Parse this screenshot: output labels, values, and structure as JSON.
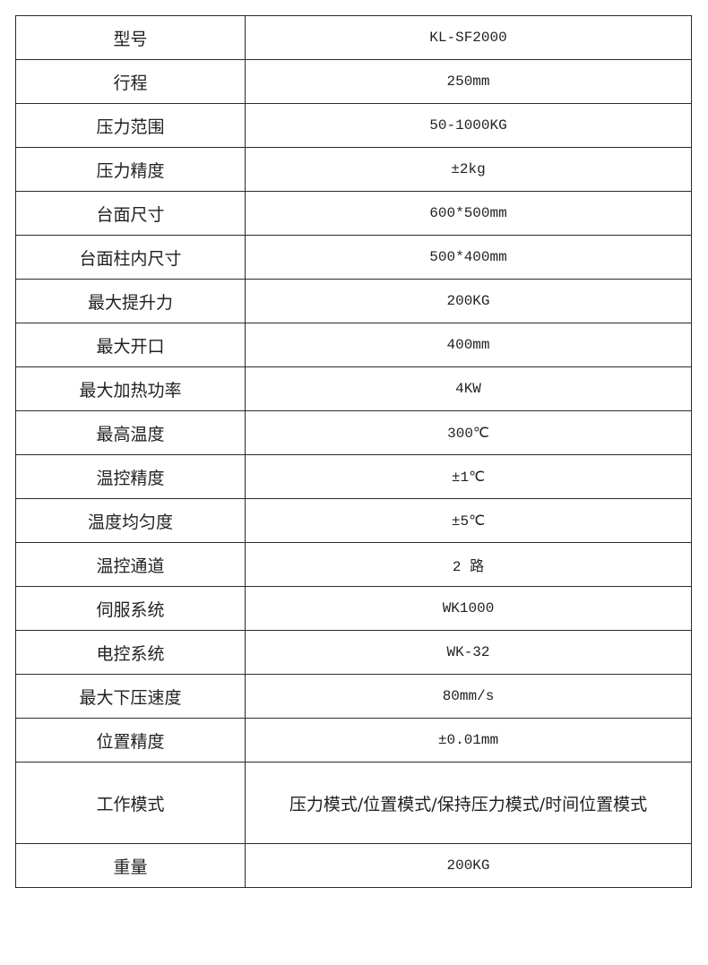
{
  "rows": [
    {
      "label": "型号",
      "value": "KL-SF2000"
    },
    {
      "label": "行程",
      "value": "250mm"
    },
    {
      "label": "压力范围",
      "value": "50-1000KG"
    },
    {
      "label": "压力精度",
      "value": "±2kg"
    },
    {
      "label": "台面尺寸",
      "value": "600*500mm"
    },
    {
      "label": "台面柱内尺寸",
      "value": "500*400mm"
    },
    {
      "label": "最大提升力",
      "value": "200KG"
    },
    {
      "label": "最大开口",
      "value": "400mm"
    },
    {
      "label": "最大加热功率",
      "value": "4KW"
    },
    {
      "label": "最高温度",
      "value": "300℃"
    },
    {
      "label": "温控精度",
      "value": "±1℃"
    },
    {
      "label": "温度均匀度",
      "value": "±5℃"
    },
    {
      "label": "温控通道",
      "value": "2 路"
    },
    {
      "label": "伺服系统",
      "value": "WK1000"
    },
    {
      "label": "电控系统",
      "value": "WK-32"
    },
    {
      "label": "最大下压速度",
      "value": "80mm/s"
    },
    {
      "label": "位置精度",
      "value": "±0.01mm"
    },
    {
      "label": "工作模式",
      "value": "压力模式/位置模式/保持压力模式/时间位置模式"
    },
    {
      "label": "重量",
      "value": "200KG"
    }
  ]
}
